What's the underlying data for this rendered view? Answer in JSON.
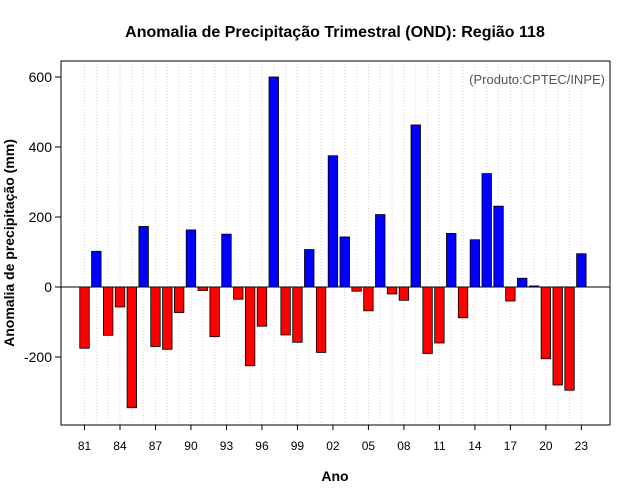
{
  "chart_data": {
    "type": "bar",
    "title": "Anomalia de Precipitação Trimestral (OND): Região 118",
    "xlabel": "Ano",
    "ylabel": "Anomalia de precipitação (mm)",
    "annotation": "(Produto:CPTEC/INPE)",
    "ylim": [
      -390,
      650
    ],
    "yticks": [
      -200,
      0,
      200,
      400,
      600
    ],
    "years": [
      1981,
      1982,
      1983,
      1984,
      1985,
      1986,
      1987,
      1988,
      1989,
      1990,
      1991,
      1992,
      1993,
      1994,
      1995,
      1996,
      1997,
      1998,
      1999,
      2000,
      2001,
      2002,
      2003,
      2004,
      2005,
      2006,
      2007,
      2008,
      2009,
      2010,
      2011,
      2012,
      2013,
      2014,
      2015,
      2016,
      2017,
      2018,
      2019,
      2020,
      2021,
      2022,
      2023
    ],
    "values": [
      -175,
      102,
      -138,
      -57,
      -345,
      173,
      -170,
      -178,
      -73,
      163,
      -10,
      -142,
      151,
      -35,
      -225,
      -112,
      600,
      -137,
      -158,
      107,
      -187,
      375,
      143,
      -12,
      -68,
      207,
      -20,
      -38,
      463,
      -190,
      -160,
      153,
      -88,
      135,
      324,
      231,
      -40,
      25,
      3,
      -205,
      -280,
      -295,
      95
    ],
    "tick_years": [
      1981,
      1984,
      1987,
      1990,
      1993,
      1996,
      1999,
      2002,
      2005,
      2008,
      2011,
      2014,
      2017,
      2020,
      2023
    ],
    "tick_labels": [
      "81",
      "84",
      "87",
      "90",
      "93",
      "96",
      "99",
      "02",
      "05",
      "08",
      "11",
      "14",
      "17",
      "20",
      "23"
    ],
    "positive_color": "#0000ff",
    "negative_color": "#ff0000",
    "grid_color": "#d3d3d3",
    "grid": true
  }
}
